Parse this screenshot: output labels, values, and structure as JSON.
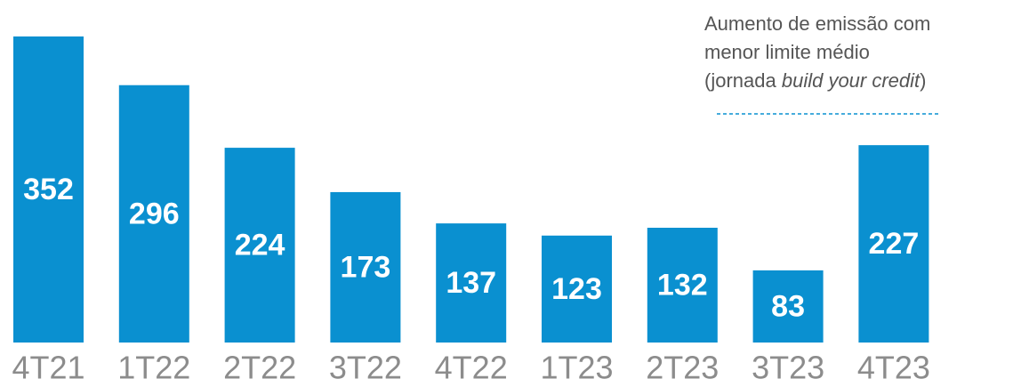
{
  "chart_data": {
    "type": "bar",
    "categories": [
      "4T21",
      "1T22",
      "2T22",
      "3T22",
      "4T22",
      "1T23",
      "2T23",
      "3T23",
      "4T23"
    ],
    "values": [
      352,
      296,
      224,
      173,
      137,
      123,
      132,
      83,
      227
    ],
    "color": "#0a90d0",
    "annotation": [
      "Aumento de emissão com",
      "menor limite médio",
      "(jornada",
      "build your credit",
      ")"
    ]
  }
}
